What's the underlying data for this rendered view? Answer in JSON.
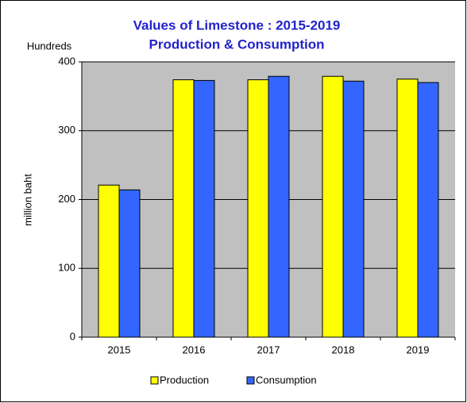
{
  "chart_data": {
    "type": "bar",
    "title": "Values of Limestone : 2015-2019",
    "subtitle": "Production & Consumption",
    "y_unit_label": "Hundreds",
    "y_label": "million baht",
    "categories": [
      "2015",
      "2016",
      "2017",
      "2018",
      "2019"
    ],
    "series": [
      {
        "name": "Production",
        "color": "#ffff00",
        "values": [
          221,
          374,
          374,
          379,
          375
        ]
      },
      {
        "name": "Consumption",
        "color": "#3366ff",
        "values": [
          214,
          373,
          379,
          372,
          370
        ]
      }
    ],
    "ylim": [
      0,
      400
    ],
    "yticks": [
      0,
      100,
      200,
      300,
      400
    ],
    "grid": true,
    "legend": "bottom"
  }
}
